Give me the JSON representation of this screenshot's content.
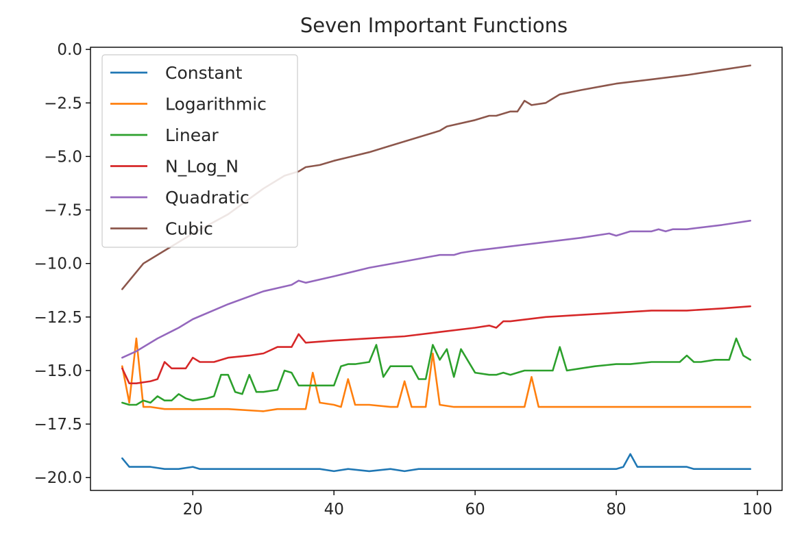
{
  "chart_data": {
    "type": "line",
    "title": "Seven Important Functions",
    "xlabel": "",
    "ylabel": "",
    "xlim": [
      5.5,
      103.5
    ],
    "ylim": [
      -20.6,
      0.1
    ],
    "xticks": [
      20,
      40,
      60,
      80,
      100
    ],
    "xtick_labels": [
      "20",
      "40",
      "60",
      "80",
      "100"
    ],
    "yticks": [
      0,
      -2.5,
      -5,
      -7.5,
      -10,
      -12.5,
      -15,
      -17.5,
      -20
    ],
    "ytick_labels": [
      "0.0",
      "−2.5",
      "−5.0",
      "−7.5",
      "−10.0",
      "−12.5",
      "−15.0",
      "−17.5",
      "−20.0"
    ],
    "grid": false,
    "legend_position": "top-left",
    "series": [
      {
        "name": "Constant",
        "color": "#1f77b4",
        "x": [
          10,
          11,
          12,
          14,
          16,
          18,
          20,
          21,
          22,
          24,
          25,
          26,
          28,
          30,
          32,
          35,
          38,
          40,
          42,
          45,
          48,
          50,
          52,
          55,
          58,
          60,
          62,
          65,
          67,
          68,
          70,
          72,
          74,
          76,
          78,
          80,
          81,
          82,
          83,
          85,
          88,
          90,
          91,
          92,
          94,
          96,
          98,
          99
        ],
        "y": [
          -19.1,
          -19.5,
          -19.5,
          -19.5,
          -19.6,
          -19.6,
          -19.5,
          -19.6,
          -19.6,
          -19.6,
          -19.6,
          -19.6,
          -19.6,
          -19.6,
          -19.6,
          -19.6,
          -19.6,
          -19.7,
          -19.6,
          -19.7,
          -19.6,
          -19.7,
          -19.6,
          -19.6,
          -19.6,
          -19.6,
          -19.6,
          -19.6,
          -19.6,
          -19.6,
          -19.6,
          -19.6,
          -19.6,
          -19.6,
          -19.6,
          -19.6,
          -19.5,
          -18.9,
          -19.5,
          -19.5,
          -19.5,
          -19.5,
          -19.6,
          -19.6,
          -19.6,
          -19.6,
          -19.6,
          -19.6
        ]
      },
      {
        "name": "Logarithmic",
        "color": "#ff7f0e",
        "x": [
          10,
          11,
          12,
          13,
          14,
          16,
          20,
          25,
          30,
          32,
          35,
          36,
          37,
          38,
          40,
          41,
          42,
          43,
          45,
          48,
          49,
          50,
          51,
          53,
          54,
          55,
          57,
          60,
          63,
          66,
          67,
          68,
          69,
          72,
          75,
          80,
          85,
          90,
          95,
          99
        ],
        "y": [
          -14.8,
          -16.5,
          -13.5,
          -16.7,
          -16.7,
          -16.8,
          -16.8,
          -16.8,
          -16.9,
          -16.8,
          -16.8,
          -16.8,
          -15.1,
          -16.5,
          -16.6,
          -16.7,
          -15.4,
          -16.6,
          -16.6,
          -16.7,
          -16.7,
          -15.5,
          -16.7,
          -16.7,
          -14.2,
          -16.6,
          -16.7,
          -16.7,
          -16.7,
          -16.7,
          -16.7,
          -15.3,
          -16.7,
          -16.7,
          -16.7,
          -16.7,
          -16.7,
          -16.7,
          -16.7,
          -16.7
        ],
        "y_note": ""
      },
      {
        "name": "Linear",
        "color": "#2ca02c",
        "x": [
          10,
          11,
          12,
          13,
          14,
          15,
          16,
          17,
          18,
          19,
          20,
          22,
          23,
          24,
          25,
          26,
          27,
          28,
          29,
          30,
          32,
          33,
          34,
          35,
          36,
          38,
          40,
          41,
          42,
          43,
          45,
          46,
          47,
          48,
          50,
          51,
          52,
          53,
          54,
          55,
          56,
          57,
          58,
          60,
          62,
          63,
          64,
          65,
          67,
          69,
          71,
          72,
          73,
          75,
          77,
          80,
          82,
          85,
          88,
          89,
          90,
          91,
          92,
          94,
          96,
          97,
          98,
          99
        ],
        "y": [
          -16.5,
          -16.6,
          -16.6,
          -16.4,
          -16.5,
          -16.2,
          -16.4,
          -16.4,
          -16.1,
          -16.3,
          -16.4,
          -16.3,
          -16.2,
          -15.2,
          -15.2,
          -16.0,
          -16.1,
          -15.2,
          -16.0,
          -16.0,
          -15.9,
          -15.0,
          -15.1,
          -15.7,
          -15.7,
          -15.7,
          -15.7,
          -14.8,
          -14.7,
          -14.7,
          -14.6,
          -13.8,
          -15.3,
          -14.8,
          -14.8,
          -14.8,
          -15.4,
          -15.4,
          -13.8,
          -14.5,
          -14.0,
          -15.3,
          -14.0,
          -15.1,
          -15.2,
          -15.2,
          -15.1,
          -15.2,
          -15.0,
          -15.0,
          -15.0,
          -13.9,
          -15.0,
          -14.9,
          -14.8,
          -14.7,
          -14.7,
          -14.6,
          -14.6,
          -14.6,
          -14.3,
          -14.6,
          -14.6,
          -14.5,
          -14.5,
          -13.5,
          -14.3,
          -14.5
        ]
      },
      {
        "name": "N_Log_N",
        "color": "#d62728",
        "x": [
          10,
          11,
          12,
          14,
          15,
          16,
          17,
          19,
          20,
          21,
          23,
          25,
          28,
          30,
          32,
          34,
          35,
          36,
          40,
          45,
          50,
          55,
          60,
          62,
          63,
          64,
          65,
          70,
          75,
          80,
          85,
          88,
          90,
          95,
          99
        ],
        "y": [
          -14.9,
          -15.6,
          -15.6,
          -15.5,
          -15.4,
          -14.6,
          -14.9,
          -14.9,
          -14.4,
          -14.6,
          -14.6,
          -14.4,
          -14.3,
          -14.2,
          -13.9,
          -13.9,
          -13.3,
          -13.7,
          -13.6,
          -13.5,
          -13.4,
          -13.2,
          -13.0,
          -12.9,
          -13.0,
          -12.7,
          -12.7,
          -12.5,
          -12.4,
          -12.3,
          -12.2,
          -12.2,
          -12.2,
          -12.1,
          -12.0
        ]
      },
      {
        "name": "Quadratic",
        "color": "#9467bd",
        "x": [
          10,
          12,
          15,
          18,
          20,
          25,
          30,
          34,
          35,
          36,
          40,
          45,
          50,
          55,
          57,
          58,
          60,
          65,
          70,
          75,
          79,
          80,
          82,
          83,
          85,
          86,
          87,
          88,
          90,
          95,
          99
        ],
        "y": [
          -14.4,
          -14.1,
          -13.5,
          -13.0,
          -12.6,
          -11.9,
          -11.3,
          -11.0,
          -10.8,
          -10.9,
          -10.6,
          -10.2,
          -9.9,
          -9.6,
          -9.6,
          -9.5,
          -9.4,
          -9.2,
          -9.0,
          -8.8,
          -8.6,
          -8.7,
          -8.5,
          -8.5,
          -8.5,
          -8.4,
          -8.5,
          -8.4,
          -8.4,
          -8.2,
          -8.0
        ]
      },
      {
        "name": "Cubic",
        "color": "#8c564b",
        "x": [
          10,
          13,
          16,
          20,
          25,
          30,
          33,
          35,
          36,
          38,
          40,
          45,
          48,
          50,
          53,
          55,
          56,
          60,
          62,
          63,
          65,
          66,
          67,
          68,
          70,
          71,
          72,
          75,
          80,
          85,
          90,
          95,
          99
        ],
        "y": [
          -11.2,
          -10.0,
          -9.4,
          -8.6,
          -7.7,
          -6.5,
          -5.9,
          -5.7,
          -5.5,
          -5.4,
          -5.2,
          -4.8,
          -4.5,
          -4.3,
          -4.0,
          -3.8,
          -3.6,
          -3.3,
          -3.1,
          -3.1,
          -2.9,
          -2.9,
          -2.4,
          -2.6,
          -2.5,
          -2.3,
          -2.1,
          -1.9,
          -1.6,
          -1.4,
          -1.2,
          -0.95,
          -0.75
        ]
      }
    ]
  }
}
